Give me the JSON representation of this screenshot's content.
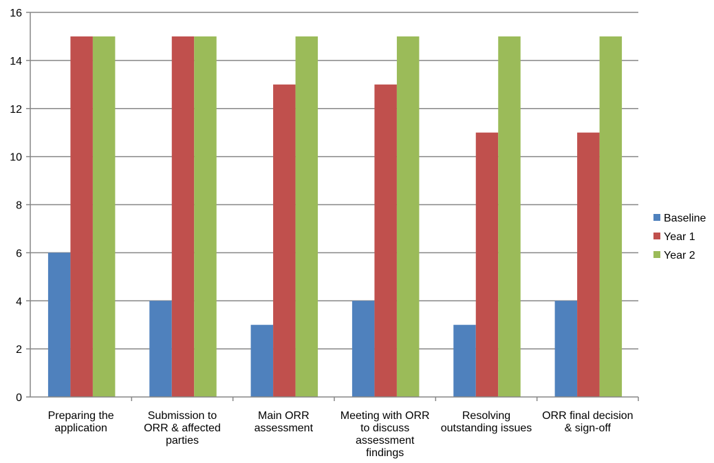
{
  "chart_data": {
    "type": "bar",
    "title": "",
    "xlabel": "",
    "ylabel": "",
    "ylim": [
      0,
      16
    ],
    "yticks": [
      0,
      2,
      4,
      6,
      8,
      10,
      12,
      14,
      16
    ],
    "grid": true,
    "legend_position": "right",
    "categories": [
      [
        "Preparing the",
        "application"
      ],
      [
        "Submission to",
        "ORR & affected",
        "parties"
      ],
      [
        "Main ORR",
        "assessment"
      ],
      [
        "Meeting with ORR",
        "to discuss",
        "assessment",
        "findings"
      ],
      [
        "Resolving",
        "outstanding issues"
      ],
      [
        "ORR final decision",
        "& sign-off"
      ]
    ],
    "series": [
      {
        "name": "Baseline",
        "color": "#4F81BD",
        "values": [
          6,
          4,
          3,
          4,
          3,
          4
        ]
      },
      {
        "name": "Year 1",
        "color": "#C0504D",
        "values": [
          15,
          15,
          13,
          13,
          11,
          11
        ]
      },
      {
        "name": "Year 2",
        "color": "#9BBB59",
        "values": [
          15,
          15,
          15,
          15,
          15,
          15
        ]
      }
    ]
  }
}
